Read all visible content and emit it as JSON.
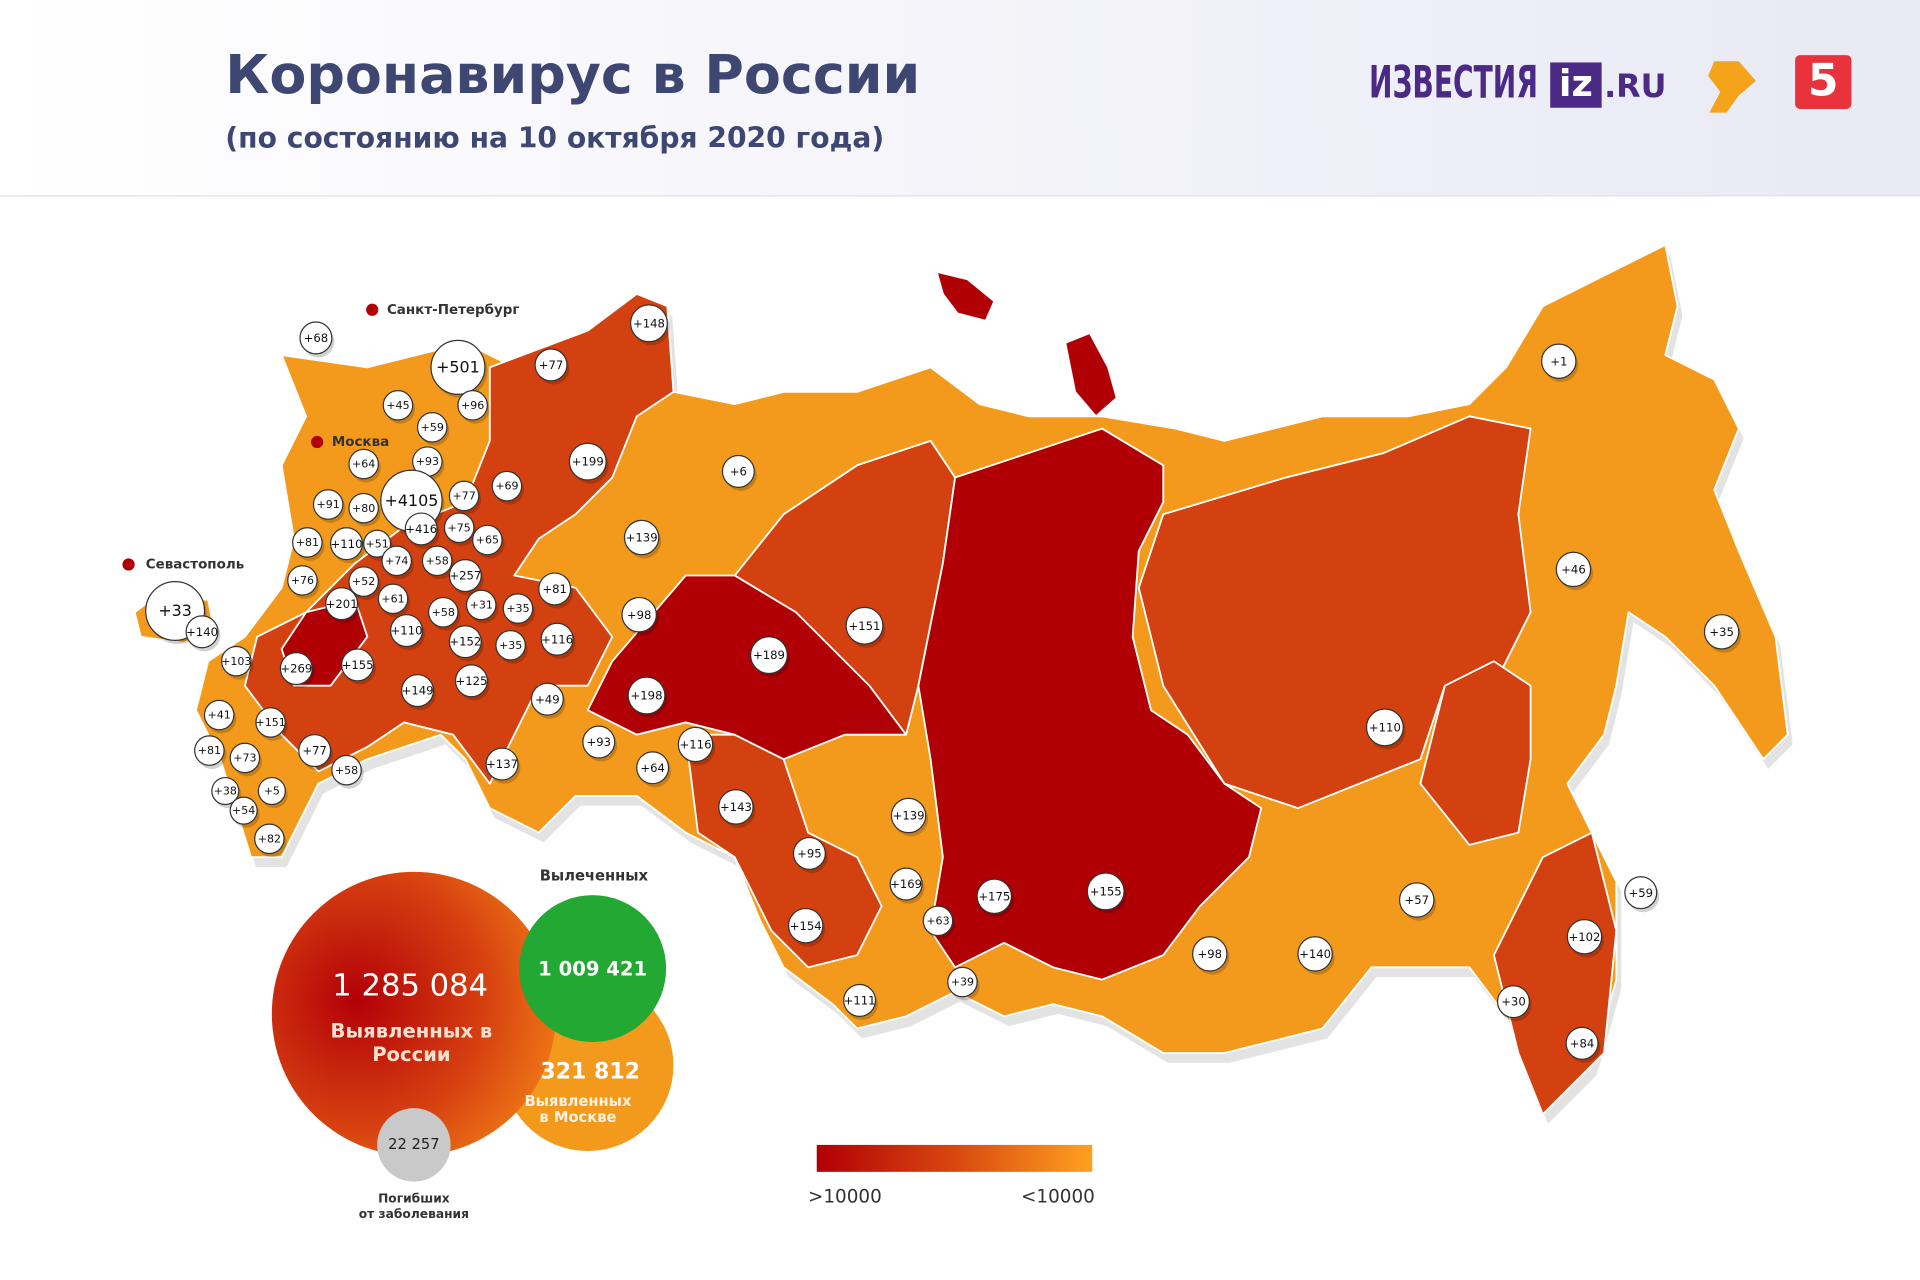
{
  "header": {
    "title": "Коронавирус в России",
    "subtitle": "(по состоянию на 10 октября 2020 года)"
  },
  "logos": {
    "izvestia": "ИЗВЕСТИЯ",
    "iz": "iz",
    "ru": ".RU",
    "channel5": "5"
  },
  "cities": [
    "Санкт-Петербург",
    "Москва",
    "Севастополь"
  ],
  "regions": [
    "+68",
    "+501",
    "+45",
    "+96",
    "+59",
    "+64",
    "+93",
    "+4105",
    "+91",
    "+80",
    "+77",
    "+69",
    "+81",
    "+110",
    "+51",
    "+416",
    "+75",
    "+65",
    "+76",
    "+52",
    "+74",
    "+58",
    "+257",
    "+201",
    "+61",
    "+31",
    "+35",
    "+33",
    "+140",
    "+58",
    "+110",
    "+152",
    "+35",
    "+103",
    "+269",
    "+155",
    "+125",
    "+149",
    "+41",
    "+151",
    "+77",
    "+81",
    "+73",
    "+58",
    "+38",
    "+5",
    "+54",
    "+82",
    "+148",
    "+77",
    "+199",
    "+6",
    "+139",
    "+81",
    "+116",
    "+98",
    "+49",
    "+198",
    "+189",
    "+151",
    "+93",
    "+116",
    "+64",
    "+137",
    "+143",
    "+139",
    "+95",
    "+169",
    "+175",
    "+155",
    "+63",
    "+154",
    "+98",
    "+140",
    "+57",
    "+39",
    "+111",
    "+110",
    "+46",
    "+1",
    "+35",
    "+59",
    "+102",
    "+30",
    "+84"
  ],
  "summary": {
    "cases": "1 285 084",
    "cases_label": [
      "Выявленных в",
      "России"
    ],
    "recovered_title": "Вылеченных",
    "recovered": "1 009 421",
    "moscow": "321 812",
    "moscow_label": [
      "Выявленных",
      "в Москве"
    ],
    "deaths": "22 257",
    "deaths_label": [
      "Погибших",
      "от заболевания"
    ]
  },
  "legend": {
    "high": ">10000",
    "low": "<10000"
  }
}
